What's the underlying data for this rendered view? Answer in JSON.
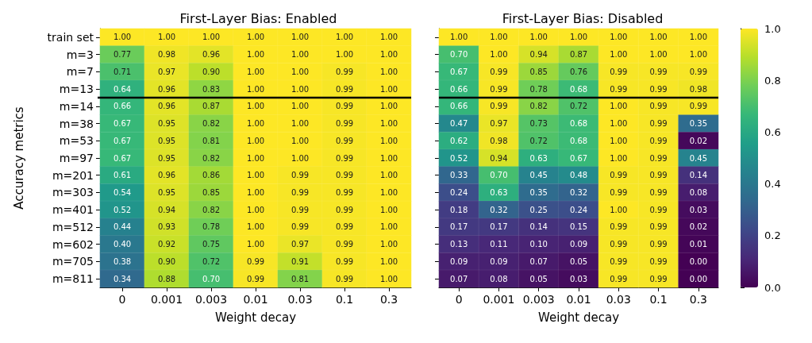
{
  "chart_data": [
    {
      "type": "heatmap",
      "title": "First-Layer Bias: Enabled",
      "xlabel": "Weight decay",
      "ylabel": "Accuracy metrics",
      "categories": [
        "0",
        "0.001",
        "0.003",
        "0.01",
        "0.03",
        "0.1",
        "0.3"
      ],
      "y_categories": [
        "train set",
        "m=3",
        "m=7",
        "m=13",
        "m=14",
        "m=38",
        "m=53",
        "m=97",
        "m=201",
        "m=303",
        "m=401",
        "m=512",
        "m=602",
        "m=705",
        "m=811"
      ],
      "cells": [
        [
          1,
          1,
          1,
          1,
          1,
          1,
          1
        ],
        [
          0.77,
          0.98,
          0.96,
          1,
          1,
          1,
          1
        ],
        [
          0.71,
          0.97,
          0.9,
          1,
          1,
          0.99,
          1
        ],
        [
          0.64,
          0.96,
          0.83,
          1,
          1,
          0.99,
          1
        ],
        [
          0.66,
          0.96,
          0.87,
          1,
          1,
          0.99,
          1
        ],
        [
          0.67,
          0.95,
          0.82,
          1,
          1,
          0.99,
          1
        ],
        [
          0.67,
          0.95,
          0.81,
          1,
          1,
          0.99,
          1
        ],
        [
          0.67,
          0.95,
          0.82,
          1,
          1,
          0.99,
          1
        ],
        [
          0.61,
          0.96,
          0.86,
          1,
          0.99,
          0.99,
          1
        ],
        [
          0.54,
          0.95,
          0.85,
          1,
          0.99,
          0.99,
          1
        ],
        [
          0.52,
          0.94,
          0.82,
          1,
          0.99,
          0.99,
          1
        ],
        [
          0.44,
          0.93,
          0.78,
          1,
          0.99,
          0.99,
          1
        ],
        [
          0.4,
          0.92,
          0.75,
          1,
          0.97,
          0.99,
          1
        ],
        [
          0.38,
          0.9,
          0.72,
          0.99,
          0.91,
          0.99,
          1
        ],
        [
          0.34,
          0.88,
          0.7,
          0.99,
          0.81,
          0.99,
          1
        ]
      ],
      "cell_labels": [
        [
          "1.00",
          "1.00",
          "1.00",
          "1.00",
          "1.00",
          "1.00",
          "1.00"
        ],
        [
          "0.77",
          "0.98",
          "0.96",
          "1.00",
          "1.00",
          "1.00",
          "1.00"
        ],
        [
          "0.71",
          "0.97",
          "0.90",
          "1.00",
          "1.00",
          "0.99",
          "1.00"
        ],
        [
          "0.64",
          "0.96",
          "0.83",
          "1.00",
          "1.00",
          "0.99",
          "1.00"
        ],
        [
          "0.66",
          "0.96",
          "0.87",
          "1.00",
          "1.00",
          "0.99",
          "1.00"
        ],
        [
          "0.67",
          "0.95",
          "0.82",
          "1.00",
          "1.00",
          "0.99",
          "1.00"
        ],
        [
          "0.67",
          "0.95",
          "0.81",
          "1.00",
          "1.00",
          "0.99",
          "1.00"
        ],
        [
          "0.67",
          "0.95",
          "0.82",
          "1.00",
          "1.00",
          "0.99",
          "1.00"
        ],
        [
          "0.61",
          "0.96",
          "0.86",
          "1.00",
          "0.99",
          "0.99",
          "1.00"
        ],
        [
          "0.54",
          "0.95",
          "0.85",
          "1.00",
          "0.99",
          "0.99",
          "1.00"
        ],
        [
          "0.52",
          "0.94",
          "0.82",
          "1.00",
          "0.99",
          "0.99",
          "1.00"
        ],
        [
          "0.44",
          "0.93",
          "0.78",
          "1.00",
          "0.99",
          "0.99",
          "1.00"
        ],
        [
          "0.40",
          "0.92",
          "0.75",
          "1.00",
          "0.97",
          "0.99",
          "1.00"
        ],
        [
          "0.38",
          "0.90",
          "0.72",
          "0.99",
          "0.91",
          "0.99",
          "1.00"
        ],
        [
          "0.34",
          "0.88",
          "0.70",
          "0.99",
          "0.81",
          "0.99",
          "1.00"
        ]
      ]
    },
    {
      "type": "heatmap",
      "title": "First-Layer Bias: Disabled",
      "xlabel": "Weight decay",
      "tick_labels": "x",
      "categories": [
        "0",
        "0.001",
        "0.003",
        "0.01",
        "0.03",
        "0.1",
        "0.3"
      ],
      "y_categories": [
        null,
        null,
        null,
        null,
        null,
        null,
        null,
        null,
        null,
        null,
        null,
        null,
        null,
        null,
        null
      ],
      "cells": [
        [
          1,
          1,
          1,
          1,
          1,
          1,
          1
        ],
        [
          0.7,
          1,
          0.94,
          0.87,
          1,
          1,
          1
        ],
        [
          0.67,
          0.99,
          0.85,
          0.76,
          0.99,
          0.99,
          0.99
        ],
        [
          0.66,
          0.99,
          0.78,
          0.68,
          0.99,
          0.99,
          0.98
        ],
        [
          0.66,
          0.99,
          0.82,
          0.72,
          1,
          0.99,
          0.99
        ],
        [
          0.47,
          0.97,
          0.73,
          0.68,
          1,
          0.99,
          0.35
        ],
        [
          0.62,
          0.98,
          0.72,
          0.68,
          1,
          0.99,
          0.02
        ],
        [
          0.52,
          0.94,
          0.63,
          0.67,
          1,
          0.99,
          0.45
        ],
        [
          0.33,
          0.7,
          0.45,
          0.48,
          0.99,
          0.99,
          0.14
        ],
        [
          0.24,
          0.63,
          0.35,
          0.32,
          0.99,
          0.99,
          0.08
        ],
        [
          0.18,
          0.32,
          0.25,
          0.24,
          1,
          0.99,
          0.03
        ],
        [
          0.17,
          0.17,
          0.14,
          0.15,
          0.99,
          0.99,
          0.02
        ],
        [
          0.13,
          0.11,
          0.1,
          0.09,
          0.99,
          0.99,
          0.01
        ],
        [
          0.09,
          0.09,
          0.07,
          0.05,
          0.99,
          0.99,
          0
        ],
        [
          0.07,
          0.08,
          0.05,
          0.03,
          0.99,
          0.99,
          0
        ]
      ],
      "cell_labels": [
        [
          "1.00",
          "1.00",
          "1.00",
          "1.00",
          "1.00",
          "1.00",
          "1.00"
        ],
        [
          "0.70",
          "1.00",
          "0.94",
          "0.87",
          "1.00",
          "1.00",
          "1.00"
        ],
        [
          "0.67",
          "0.99",
          "0.85",
          "0.76",
          "0.99",
          "0.99",
          "0.99"
        ],
        [
          "0.66",
          "0.99",
          "0.78",
          "0.68",
          "0.99",
          "0.99",
          "0.98"
        ],
        [
          "0.66",
          "0.99",
          "0.82",
          "0.72",
          "1.00",
          "0.99",
          "0.99"
        ],
        [
          "0.47",
          "0.97",
          "0.73",
          "0.68",
          "1.00",
          "0.99",
          "0.35"
        ],
        [
          "0.62",
          "0.98",
          "0.72",
          "0.68",
          "1.00",
          "0.99",
          "0.02"
        ],
        [
          "0.52",
          "0.94",
          "0.63",
          "0.67",
          "1.00",
          "0.99",
          "0.45"
        ],
        [
          "0.33",
          "0.70",
          "0.45",
          "0.48",
          "0.99",
          "0.99",
          "0.14"
        ],
        [
          "0.24",
          "0.63",
          "0.35",
          "0.32",
          "0.99",
          "0.99",
          "0.08"
        ],
        [
          "0.18",
          "0.32",
          "0.25",
          "0.24",
          "1.00",
          "0.99",
          "0.03"
        ],
        [
          "0.17",
          "0.17",
          "0.14",
          "0.15",
          "0.99",
          "0.99",
          "0.02"
        ],
        [
          "0.13",
          "0.11",
          "0.10",
          "0.09",
          "0.99",
          "0.99",
          "0.01"
        ],
        [
          "0.09",
          "0.09",
          "0.07",
          "0.05",
          "0.99",
          "0.99",
          "0.00"
        ],
        [
          "0.07",
          "0.08",
          "0.05",
          "0.03",
          "0.99",
          "0.99",
          "0.00"
        ]
      ],
      "clim": [
        0,
        1
      ],
      "cticks": [
        {
          "value": 0,
          "label": "0.0"
        },
        {
          "value": 0.2,
          "label": "0.2"
        },
        {
          "value": 0.4,
          "label": "0.4"
        },
        {
          "value": 0.6,
          "label": "0.6"
        },
        {
          "value": 0.8,
          "label": "0.8"
        },
        {
          "value": 1,
          "label": "1.0"
        }
      ]
    }
  ]
}
